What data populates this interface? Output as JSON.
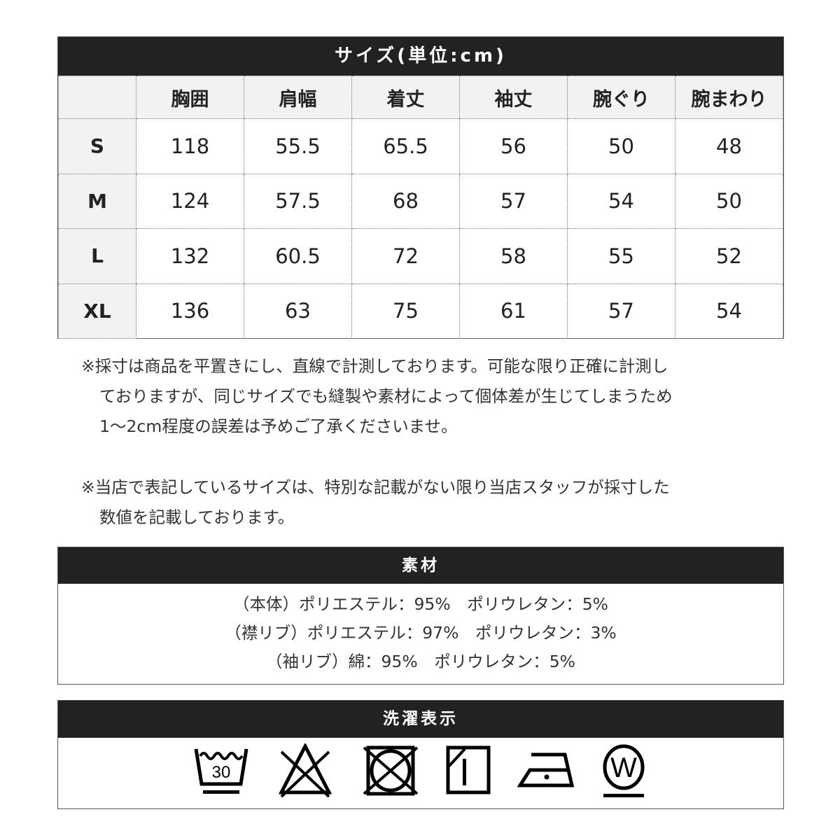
{
  "size_chart": {
    "title": "サイズ(単位:cm)",
    "headers": [
      "",
      "胸囲",
      "肩幅",
      "着丈",
      "袖丈",
      "腕ぐり",
      "腕まわり"
    ],
    "rows": [
      [
        "S",
        "118",
        "55.5",
        "65.5",
        "56",
        "50",
        "48"
      ],
      [
        "M",
        "124",
        "57.5",
        "68",
        "57",
        "54",
        "50"
      ],
      [
        "L",
        "132",
        "60.5",
        "72",
        "58",
        "55",
        "52"
      ],
      [
        "XL",
        "136",
        "63",
        "75",
        "61",
        "57",
        "54"
      ]
    ]
  },
  "notes": [
    [
      "※採寸は商品を平置きにし、直線で計測しております。可能な限り正確に計測し",
      "ておりますが、同じサイズでも縫製や素材によって個体差が生じてしまうため",
      "1〜2cm程度の誤差は予めご了承くださいませ。"
    ],
    [
      "※当店で表記しているサイズは、特別な記載がない限り当店スタッフが採寸した",
      "数値を記載しております。"
    ]
  ],
  "material": {
    "title": "素材",
    "lines": [
      "（本体）ポリエステル：95%　ポリウレタン：5%",
      "（襟リブ）ポリエステル：97%　ポリウレタン：3%",
      "（袖リブ）綿：95%　ポリウレタン：5%"
    ]
  },
  "care": {
    "title": "洗濯表示",
    "icons": [
      "wash-30-gentle-icon",
      "no-bleach-icon",
      "no-tumble-dry-icon",
      "drip-dry-shade-icon",
      "iron-low-icon",
      "wet-clean-gentle-icon"
    ],
    "wash_temp": "30",
    "wet_clean_letter": "W"
  }
}
